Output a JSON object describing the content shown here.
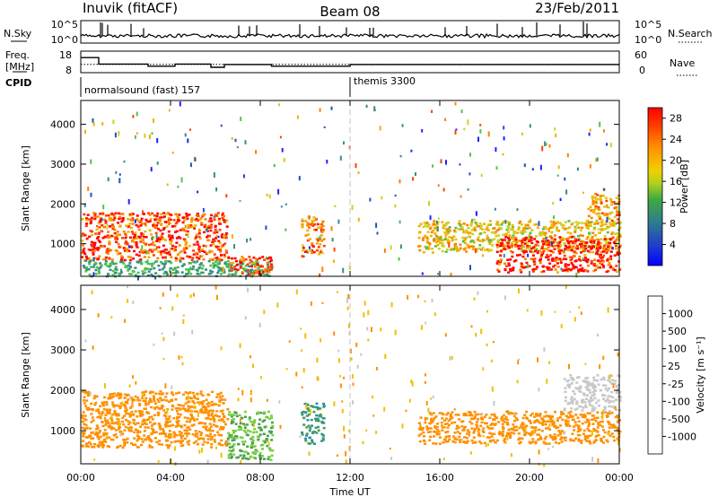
{
  "header": {
    "station": "Inuvik (fitACF)",
    "beam": "Beam 08",
    "date": "23/Feb/2011"
  },
  "chart_data": [
    {
      "type": "line",
      "name": "noise-panel",
      "left_label": "N.Sky",
      "right_label": "N.Search",
      "left_ticks": [
        "10^5",
        "10^0"
      ],
      "right_ticks": [
        "10^5",
        "10^0"
      ],
      "x_range_hours": [
        0,
        24
      ]
    },
    {
      "type": "line",
      "name": "freq-panel",
      "left_label_top": "Freq.",
      "left_label_bottom": "[MHz]",
      "right_label": "Nave",
      "left_ticks": [
        "18",
        "8"
      ],
      "right_ticks": [
        "60",
        "0"
      ],
      "ylim_left": [
        8,
        18
      ],
      "ylim_right": [
        0,
        60
      ],
      "x_range_hours": [
        0,
        24
      ],
      "freq_steps": [
        {
          "start": 0.0,
          "end": 0.8,
          "mhz": 15.0
        },
        {
          "start": 0.8,
          "end": 3.0,
          "mhz": 12.0
        },
        {
          "start": 3.0,
          "end": 4.2,
          "mhz": 11.0
        },
        {
          "start": 4.2,
          "end": 5.8,
          "mhz": 12.0
        },
        {
          "start": 5.8,
          "end": 6.4,
          "mhz": 10.5
        },
        {
          "start": 6.4,
          "end": 8.5,
          "mhz": 11.8
        },
        {
          "start": 8.5,
          "end": 12.0,
          "mhz": 11.0
        },
        {
          "start": 12.0,
          "end": 24.0,
          "mhz": 11.8
        }
      ],
      "nave_level": 23
    },
    {
      "type": "table",
      "name": "cpid-panel",
      "label": "CPID",
      "segments": [
        {
          "text": "normalsound (fast) 157",
          "start": 0.0,
          "end": 12.0
        },
        {
          "text": "themis 3300",
          "start": 12.0,
          "end": 24.0
        }
      ]
    },
    {
      "type": "heatmap",
      "name": "power-panel",
      "ylabel": "Slant Range [km]",
      "yticks": [
        "1000",
        "2000",
        "3000",
        "4000"
      ],
      "ylim": [
        180,
        4600
      ],
      "colorbar_label": "Power [dB]",
      "colorbar_ticks": [
        "4",
        "8",
        "12",
        "16",
        "20",
        "24",
        "28"
      ],
      "colorbar_range": [
        0,
        30
      ],
      "regions": [
        {
          "t0": 0.0,
          "t1": 6.5,
          "r0": 600,
          "r1": 1800,
          "value": 25
        },
        {
          "t0": 0.0,
          "t1": 8.5,
          "r0": 200,
          "r1": 600,
          "value": 10
        },
        {
          "t0": 6.5,
          "t1": 8.5,
          "r0": 250,
          "r1": 700,
          "value": 27
        },
        {
          "t0": 9.8,
          "t1": 10.8,
          "r0": 700,
          "r1": 1700,
          "value": 22
        },
        {
          "t0": 15.0,
          "t1": 24.0,
          "r0": 800,
          "r1": 1600,
          "value": 17
        },
        {
          "t0": 18.5,
          "t1": 24.0,
          "r0": 300,
          "r1": 1200,
          "value": 28
        },
        {
          "t0": 22.5,
          "t1": 24.0,
          "r0": 1500,
          "r1": 2300,
          "value": 19
        }
      ]
    },
    {
      "type": "heatmap",
      "name": "velocity-panel",
      "ylabel": "Slant Range [km]",
      "yticks": [
        "1000",
        "2000",
        "3000",
        "4000"
      ],
      "ylim": [
        180,
        4600
      ],
      "xlabel": "Time UT",
      "xticks": [
        "00:00",
        "04:00",
        "08:00",
        "12:00",
        "16:00",
        "20:00",
        "00:00"
      ],
      "colorbar_label": "Velocity [m s⁻¹]",
      "colorbar_ticks": [
        "1000",
        "500",
        "100",
        "25",
        "-25",
        "-100",
        "-500",
        "-1000"
      ],
      "regions": [
        {
          "t0": 0.0,
          "t1": 6.5,
          "r0": 600,
          "r1": 2000,
          "value": -150
        },
        {
          "t0": 6.5,
          "t1": 8.5,
          "r0": 300,
          "r1": 1500,
          "value": 60
        },
        {
          "t0": 9.8,
          "t1": 10.8,
          "r0": 700,
          "r1": 1700,
          "value": 200
        },
        {
          "t0": 15.0,
          "t1": 24.0,
          "r0": 700,
          "r1": 1500,
          "value": -200
        },
        {
          "t0": 21.5,
          "t1": 24.0,
          "r0": 1500,
          "r1": 2400,
          "value": 0
        }
      ]
    }
  ],
  "colors": {
    "power": [
      "#2020ff",
      "#2050c0",
      "#3a8a8a",
      "#50c050",
      "#d0d020",
      "#f0b000",
      "#ff8000",
      "#ff4000",
      "#ff0000"
    ],
    "velocity": [
      "#1a2fd0",
      "#2d8fa8",
      "#4aa050",
      "#7ad040",
      "#c8c8c8",
      "#f0c000",
      "#ff9000",
      "#ff5000",
      "#ff0000"
    ],
    "dash": "#c0c0c0"
  }
}
